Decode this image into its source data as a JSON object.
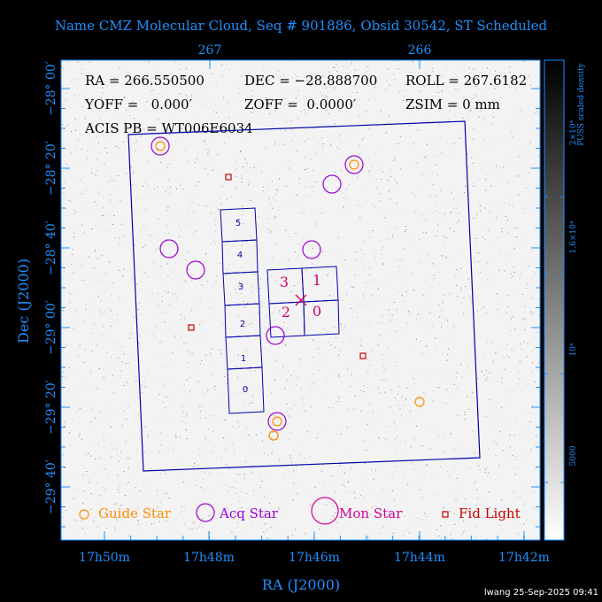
{
  "title": "Name CMZ Molecular Cloud, Seq # 901886, Obsid 30542, ST Scheduled",
  "info": {
    "ra": "RA = 266.550500",
    "dec": "DEC = −28.888700",
    "roll": "ROLL = 267.6182",
    "yoff": "YOFF =   0.000′",
    "zoff": "ZOFF =  0.0000′",
    "zsim": "ZSIM = 0 mm",
    "acis_pb": "ACIS PB = WT006E6034"
  },
  "axes": {
    "x_label": "RA (J2000)",
    "y_label": "Dec (J2000)",
    "x_ticks": [
      "17h50m",
      "17h48m",
      "17h46m",
      "17h44m",
      "17h42m"
    ],
    "x_top_ticks": [
      "267",
      "266"
    ],
    "y_ticks": [
      "−28° 00′",
      "−28° 20′",
      "−28° 40′",
      "−29° 00′",
      "−29° 20′",
      "−29° 40′"
    ]
  },
  "colorbar": {
    "label": "PUSS scaled density",
    "ticks": [
      "2×10⁴",
      "1.6×10⁴",
      "10⁴",
      "5000"
    ]
  },
  "chips_i": [
    "0",
    "1",
    "2",
    "3"
  ],
  "chips_s": [
    "5",
    "4",
    "3",
    "2",
    "1",
    "0"
  ],
  "legend": {
    "guide": "Guide Star",
    "acq": "Acq Star",
    "mon": "Mon Star",
    "fid": "Fid Light"
  },
  "colors": {
    "axis": "#1e90ff",
    "field": "#0000aa",
    "guide": "#ff8c00",
    "acq": "#9b00d3",
    "mon": "#d4009a",
    "fid": "#cc0000"
  },
  "footer": "lwang 25-Sep-2025 09:41"
}
